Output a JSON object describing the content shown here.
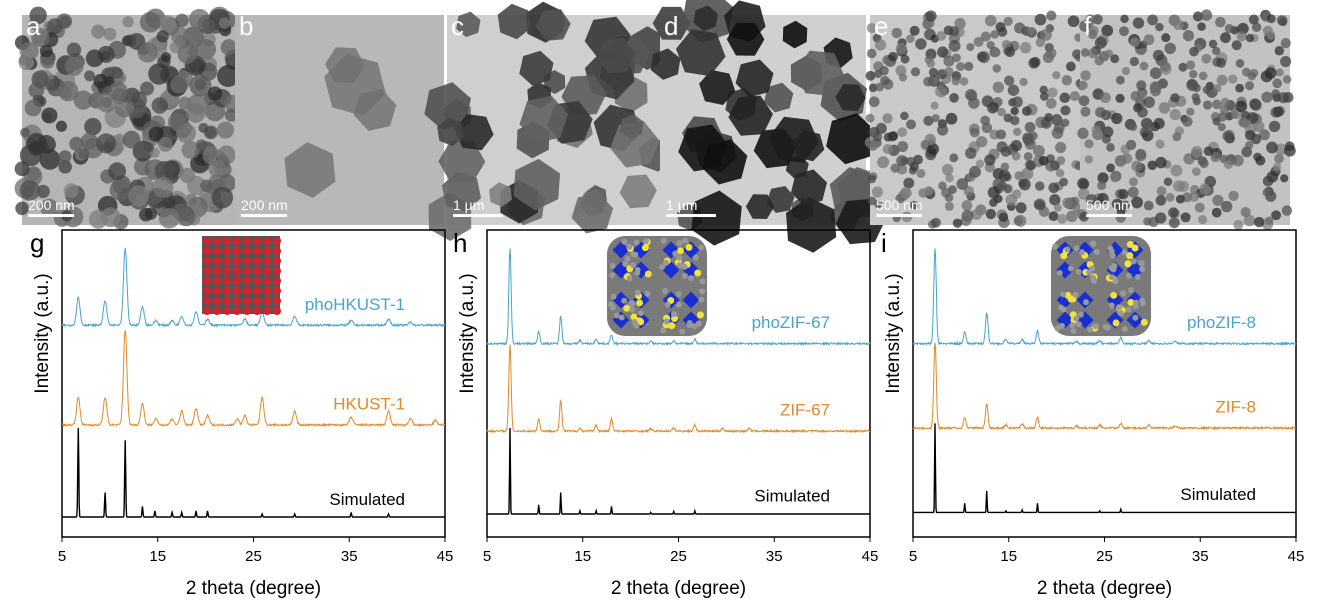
{
  "tem_panels": [
    {
      "label": "a",
      "scale": "200 nm",
      "tone": "#8a8a8a",
      "bg": "#b5b5b5",
      "kind": "dense-small"
    },
    {
      "label": "b",
      "scale": "200 nm",
      "tone": "#707070",
      "bg": "#b8b8b8",
      "kind": "sparse"
    },
    {
      "label": "c",
      "scale": "1 µm",
      "tone": "#4a4a4a",
      "bg": "#cfcfcf",
      "kind": "cubes"
    },
    {
      "label": "d",
      "scale": "1 µm",
      "tone": "#222",
      "bg": "#d0d0d0",
      "kind": "cubes-dark"
    },
    {
      "label": "e",
      "scale": "500 nm",
      "tone": "#666",
      "bg": "#c9c9c9",
      "kind": "dots"
    },
    {
      "label": "f",
      "scale": "500 nm",
      "tone": "#666",
      "bg": "#c2c2c2",
      "kind": "dots"
    }
  ],
  "colors": {
    "pho": "#4ba3cc",
    "orig": "#e08a2a",
    "sim": "#000000"
  },
  "chart_data": [
    {
      "type": "line",
      "panel": "g",
      "xlabel": "2 theta (degree)",
      "ylabel": "Intensity (a.u.)",
      "xlim": [
        5,
        45
      ],
      "ylim": [
        0,
        100
      ],
      "xticks": [
        5,
        15,
        25,
        35,
        45
      ],
      "inset": "HKUST-1 structure",
      "series": [
        {
          "name": "phoHKUST-1",
          "baseline": 69,
          "width": 0.18,
          "peaks": [
            [
              6.7,
              9
            ],
            [
              9.5,
              8
            ],
            [
              11.6,
              25
            ],
            [
              13.4,
              6
            ],
            [
              14.8,
              1.5
            ],
            [
              16.5,
              1.5
            ],
            [
              17.5,
              3
            ],
            [
              19.0,
              4.5
            ],
            [
              20.2,
              2
            ],
            [
              24.1,
              2
            ],
            [
              25.9,
              4.5
            ],
            [
              29.3,
              3
            ],
            [
              35.2,
              1.5
            ],
            [
              39.1,
              2
            ],
            [
              41.4,
              1
            ]
          ]
        },
        {
          "name": "HKUST-1",
          "baseline": 36.5,
          "width": 0.18,
          "peaks": [
            [
              6.7,
              9
            ],
            [
              9.5,
              9
            ],
            [
              11.6,
              31
            ],
            [
              13.4,
              7
            ],
            [
              14.8,
              2
            ],
            [
              16.5,
              2
            ],
            [
              17.5,
              4.5
            ],
            [
              19.0,
              5.5
            ],
            [
              20.2,
              3
            ],
            [
              23.3,
              2
            ],
            [
              24.1,
              3
            ],
            [
              25.9,
              9
            ],
            [
              29.3,
              4.5
            ],
            [
              35.2,
              2.5
            ],
            [
              39.1,
              4.5
            ],
            [
              41.4,
              2
            ],
            [
              44.0,
              1.5
            ]
          ]
        },
        {
          "name": "Simulated",
          "baseline": 6.5,
          "width": 0.05,
          "peaks": [
            [
              6.7,
              29
            ],
            [
              9.5,
              8
            ],
            [
              11.6,
              25
            ],
            [
              13.4,
              3.5
            ],
            [
              14.7,
              2
            ],
            [
              16.5,
              1.5
            ],
            [
              17.5,
              1.5
            ],
            [
              19.0,
              2
            ],
            [
              20.2,
              2
            ],
            [
              25.9,
              1
            ],
            [
              29.3,
              1
            ],
            [
              35.2,
              1.5
            ],
            [
              39.1,
              1
            ]
          ]
        }
      ]
    },
    {
      "type": "line",
      "panel": "h",
      "xlabel": "2 theta (degree)",
      "ylabel": "Intensity (a.u.)",
      "xlim": [
        5,
        45
      ],
      "ylim": [
        0,
        100
      ],
      "xticks": [
        5,
        15,
        25,
        35,
        45
      ],
      "inset": "ZIF-67 structure",
      "series": [
        {
          "name": "phoZIF-67",
          "baseline": 63,
          "width": 0.12,
          "peaks": [
            [
              7.4,
              31
            ],
            [
              10.4,
              4
            ],
            [
              12.7,
              9
            ],
            [
              14.7,
              1
            ],
            [
              16.4,
              1.5
            ],
            [
              18.0,
              3
            ],
            [
              22.1,
              0.8
            ],
            [
              24.5,
              1
            ],
            [
              26.7,
              1.5
            ]
          ]
        },
        {
          "name": "ZIF-67",
          "baseline": 34.5,
          "width": 0.12,
          "peaks": [
            [
              7.4,
              28
            ],
            [
              10.4,
              4
            ],
            [
              12.7,
              10
            ],
            [
              14.7,
              1
            ],
            [
              16.4,
              2
            ],
            [
              18.0,
              4
            ],
            [
              22.1,
              0.8
            ],
            [
              24.5,
              1
            ],
            [
              26.7,
              2
            ],
            [
              29.6,
              1
            ],
            [
              32.4,
              1
            ]
          ]
        },
        {
          "name": "Simulated",
          "baseline": 7.5,
          "width": 0.04,
          "peaks": [
            [
              7.4,
              28
            ],
            [
              10.4,
              3
            ],
            [
              12.7,
              7
            ],
            [
              14.7,
              1
            ],
            [
              16.4,
              1
            ],
            [
              18.0,
              2.5
            ],
            [
              22.1,
              0.5
            ],
            [
              24.5,
              0.8
            ],
            [
              26.7,
              1
            ]
          ]
        }
      ]
    },
    {
      "type": "line",
      "panel": "i",
      "xlabel": "2 theta (degree)",
      "ylabel": "Intensity (a.u.)",
      "xlim": [
        5,
        45
      ],
      "ylim": [
        0,
        100
      ],
      "xticks": [
        5,
        15,
        25,
        35,
        45
      ],
      "inset": "ZIF-8 structure",
      "series": [
        {
          "name": "phoZIF-8",
          "baseline": 63,
          "width": 0.13,
          "peaks": [
            [
              7.3,
              31
            ],
            [
              10.4,
              4
            ],
            [
              12.7,
              10
            ],
            [
              14.7,
              1.5
            ],
            [
              16.4,
              1.5
            ],
            [
              18.0,
              4
            ],
            [
              22.1,
              0.6
            ],
            [
              24.5,
              1
            ],
            [
              26.7,
              2
            ],
            [
              29.6,
              1
            ],
            [
              32.4,
              0.8
            ]
          ]
        },
        {
          "name": "ZIF-8",
          "baseline": 35.5,
          "width": 0.13,
          "peaks": [
            [
              7.3,
              28
            ],
            [
              10.4,
              3.5
            ],
            [
              12.7,
              8
            ],
            [
              14.7,
              1
            ],
            [
              16.4,
              1.5
            ],
            [
              18.0,
              3.5
            ],
            [
              22.1,
              0.6
            ],
            [
              24.5,
              1
            ],
            [
              26.7,
              1.5
            ],
            [
              29.6,
              1
            ],
            [
              32.4,
              0.8
            ]
          ]
        },
        {
          "name": "Simulated",
          "baseline": 8,
          "width": 0.04,
          "peaks": [
            [
              7.3,
              29
            ],
            [
              10.4,
              3
            ],
            [
              12.7,
              7
            ],
            [
              14.7,
              0.5
            ],
            [
              16.4,
              0.8
            ],
            [
              18.0,
              3
            ],
            [
              24.5,
              0.5
            ],
            [
              26.7,
              1
            ]
          ]
        }
      ]
    }
  ]
}
